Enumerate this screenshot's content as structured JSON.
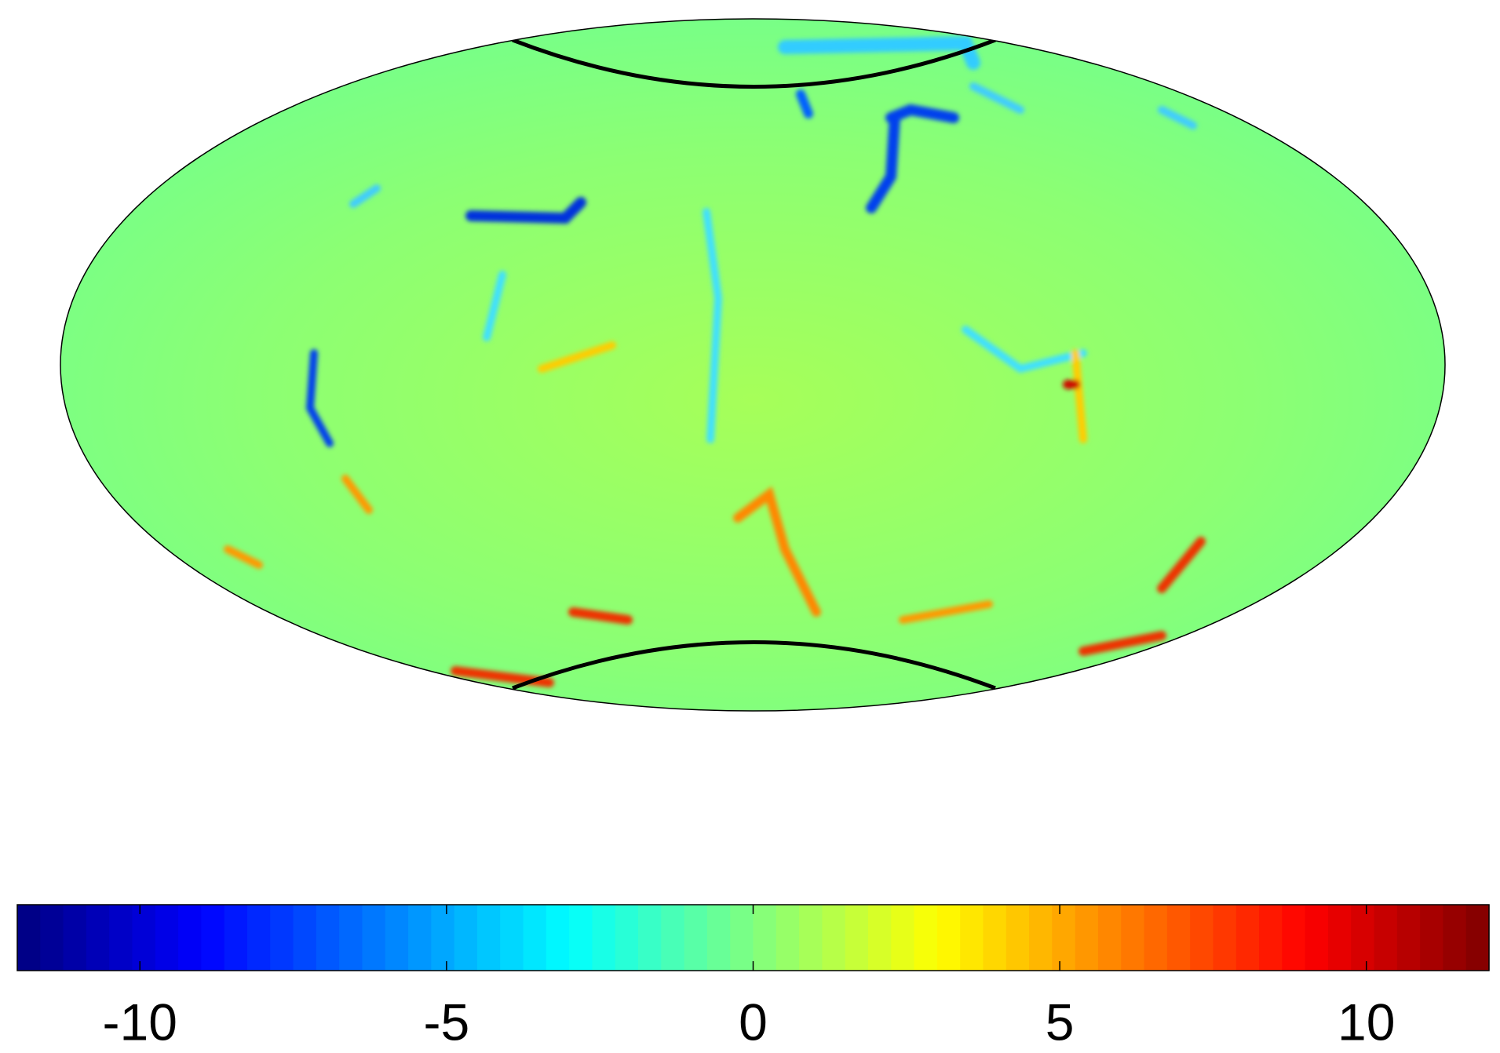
{
  "chart_data": {
    "type": "colorbar",
    "colormap": "jet",
    "levels": 64,
    "xlim": [
      -12,
      12
    ],
    "xticks": [
      -10,
      -5,
      0,
      5,
      10
    ]
  }
}
